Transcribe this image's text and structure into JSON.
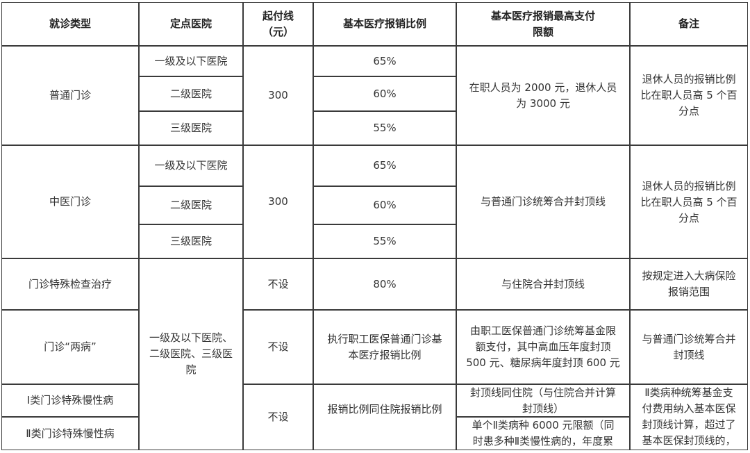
{
  "header": {
    "visit_type": "就诊类型",
    "hospital": "定点医院",
    "deductible": "起付线\n（元）",
    "ratio": "基本医疗报销比例",
    "max_limit": "基本医疗报销最高支付\n限额",
    "remarks": "备注"
  },
  "rows": {
    "general": {
      "type": "普通门诊",
      "hospitals": [
        "一级及以下医院",
        "二级医院",
        "三级医院"
      ],
      "deductible": "300",
      "ratios": [
        "65%",
        "60%",
        "55%"
      ],
      "limit": "在职人员为 2000 元，退休人员\n为 3000 元",
      "remark": "退休人员的报销比例\n比在职人员高 5 个百\n分点"
    },
    "tcm": {
      "type": "中医门诊",
      "hospitals": [
        "一级及以下医院",
        "二级医院",
        "三级医院"
      ],
      "deductible": "300",
      "ratios": [
        "65%",
        "60%",
        "55%"
      ],
      "limit": "与普通门诊统筹合并封顶线",
      "remark": "退休人员的报销比例\n比在职人员高 5 个百\n分点"
    },
    "special_exam": {
      "type": "门诊特殊检查治疗",
      "deductible": "不设",
      "ratio": "80%",
      "limit": "与住院合并封顶线",
      "remark": "按规定进入大病保险\n报销范围"
    },
    "merged_hospitals": "一级及以下医院、\n二级医院、三级医\n院",
    "two_diseases": {
      "type": "门诊“两病”",
      "deductible": "不设",
      "ratio": "执行职工医保普通门诊基\n本医疗报销比例",
      "limit": "由职工医保普通门诊统筹基金限\n额支付，其中高血压年度封顶\n500 元、糖尿病年度封顶 600 元",
      "remark": "与普通门诊统筹合并\n封顶线"
    },
    "chronic": {
      "type1": "Ⅰ类门诊特殊慢性病",
      "type2": "Ⅱ类门诊特殊慢性病",
      "deductible": "不设",
      "ratio": "报销比例同住院报销比例",
      "limit1": "封顶线同住院（与住院合并计算\n封顶线）",
      "limit2": "单个Ⅱ类病种 6000 元限额（同\n时患多种Ⅱ类慢性病的，年度累",
      "remark": "Ⅱ类病种统筹基金支\n付费用纳入基本医保\n封顶线计算，超过了\n基本医保封顶线的，"
    }
  }
}
